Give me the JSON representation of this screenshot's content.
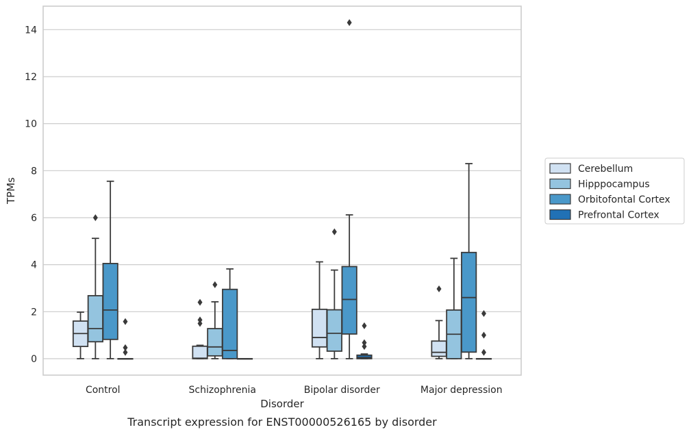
{
  "chart_data": {
    "type": "box",
    "title": "",
    "caption": "Transcript expression for ENST00000526165 by disorder",
    "xlabel": "Disorder",
    "ylabel": "TPMs",
    "ylim": [
      -0.7,
      15
    ],
    "yticks": [
      0,
      2,
      4,
      6,
      8,
      10,
      12,
      14
    ],
    "grid": true,
    "legend_position": "right",
    "categories": [
      "Control",
      "Schizophrenia",
      "Bipolar disorder",
      "Major depression"
    ],
    "series": [
      {
        "name": "Cerebellum",
        "color": "#d0e1f2",
        "boxes": [
          {
            "whislo": 0,
            "q1": 0.52,
            "med": 1.07,
            "q3": 1.6,
            "whishi": 1.98,
            "fliers": []
          },
          {
            "whislo": 0,
            "q1": 0,
            "med": 0.02,
            "q3": 0.53,
            "whishi": 0.57,
            "fliers": [
              1.5,
              1.65,
              2.4
            ]
          },
          {
            "whislo": 0,
            "q1": 0.5,
            "med": 0.9,
            "q3": 2.1,
            "whishi": 4.12,
            "fliers": []
          },
          {
            "whislo": 0,
            "q1": 0.1,
            "med": 0.27,
            "q3": 0.75,
            "whishi": 1.62,
            "fliers": [
              2.97
            ]
          }
        ]
      },
      {
        "name": "Hipppocampus",
        "color": "#94c4df",
        "boxes": [
          {
            "whislo": 0,
            "q1": 0.72,
            "med": 1.28,
            "q3": 2.68,
            "whishi": 5.12,
            "fliers": [
              6.0
            ]
          },
          {
            "whislo": 0,
            "q1": 0.12,
            "med": 0.5,
            "q3": 1.28,
            "whishi": 2.42,
            "fliers": [
              3.15
            ]
          },
          {
            "whislo": 0,
            "q1": 0.32,
            "med": 1.08,
            "q3": 2.08,
            "whishi": 3.77,
            "fliers": [
              5.4
            ]
          },
          {
            "whislo": 0,
            "q1": 0,
            "med": 1.04,
            "q3": 2.07,
            "whishi": 4.27,
            "fliers": []
          }
        ]
      },
      {
        "name": "Orbitofontal Cortex",
        "color": "#4a98c9",
        "boxes": [
          {
            "whislo": 0,
            "q1": 0.82,
            "med": 2.07,
            "q3": 4.05,
            "whishi": 7.55,
            "fliers": []
          },
          {
            "whislo": 0,
            "q1": 0,
            "med": 0.35,
            "q3": 2.95,
            "whishi": 3.82,
            "fliers": []
          },
          {
            "whislo": 0,
            "q1": 1.05,
            "med": 2.52,
            "q3": 3.92,
            "whishi": 6.12,
            "fliers": [
              14.3
            ]
          },
          {
            "whislo": 0,
            "q1": 0.28,
            "med": 2.6,
            "q3": 4.52,
            "whishi": 8.3,
            "fliers": []
          }
        ]
      },
      {
        "name": "Prefrontal Cortex",
        "color": "#2171b5",
        "boxes": [
          {
            "whislo": 0,
            "q1": 0,
            "med": 0,
            "q3": 0,
            "whishi": 0,
            "fliers": [
              0.27,
              0.47,
              1.58
            ]
          },
          {
            "whislo": 0,
            "q1": 0,
            "med": 0,
            "q3": 0,
            "whishi": 0,
            "fliers": []
          },
          {
            "whislo": 0,
            "q1": 0,
            "med": 0.05,
            "q3": 0.15,
            "whishi": 0.2,
            "fliers": [
              0.52,
              0.68,
              1.4
            ]
          },
          {
            "whislo": 0,
            "q1": 0,
            "med": 0,
            "q3": 0,
            "whishi": 0,
            "fliers": [
              0.27,
              1.0,
              1.92
            ]
          }
        ]
      }
    ]
  }
}
